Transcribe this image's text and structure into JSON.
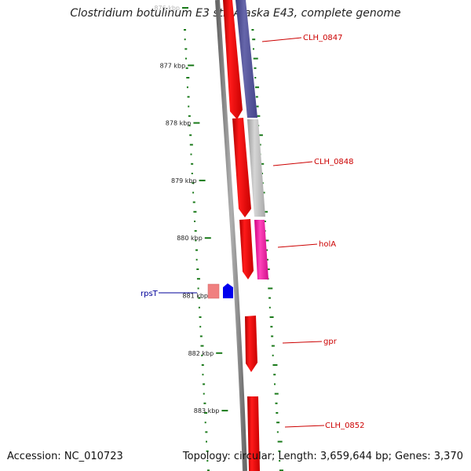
{
  "title": "Clostridium botulinum E3 str. Alaska E43, complete genome",
  "footer": {
    "accession": "Accession: NC_010723",
    "summary": "Topology: circular; Length: 3,659,644 bp; Genes: 3,370"
  },
  "scale": {
    "ticks": [
      {
        "label": "876 kbp",
        "kbp": 876
      },
      {
        "label": "877 kbp",
        "kbp": 877
      },
      {
        "label": "878 kbp",
        "kbp": 878
      },
      {
        "label": "879 kbp",
        "kbp": 879
      },
      {
        "label": "880 kbp",
        "kbp": 880
      },
      {
        "label": "881 kbp",
        "kbp": 881
      },
      {
        "label": "882 kbp",
        "kbp": 882
      },
      {
        "label": "883 kbp",
        "kbp": 883
      }
    ]
  },
  "genes": [
    {
      "label": "CLH_0847",
      "color": "#cc0000"
    },
    {
      "label": "CLH_0848",
      "color": "#cc0000"
    },
    {
      "label": "holA",
      "color": "#cc0000"
    },
    {
      "label": "rpsT",
      "color": "#000099"
    },
    {
      "label": "gpr",
      "color": "#cc0000"
    },
    {
      "label": "CLH_0852",
      "color": "#cc0000"
    }
  ],
  "colors": {
    "cds": "#ff0000",
    "cds_light": "#f08080",
    "trna": "#0000ee",
    "feature_purple": "#55559a",
    "feature_gray": "#bdbdbd",
    "feature_pink": "#ff1aaa",
    "backbone": "#8a8a8a",
    "gc_ticks": "#1a7a1a"
  }
}
